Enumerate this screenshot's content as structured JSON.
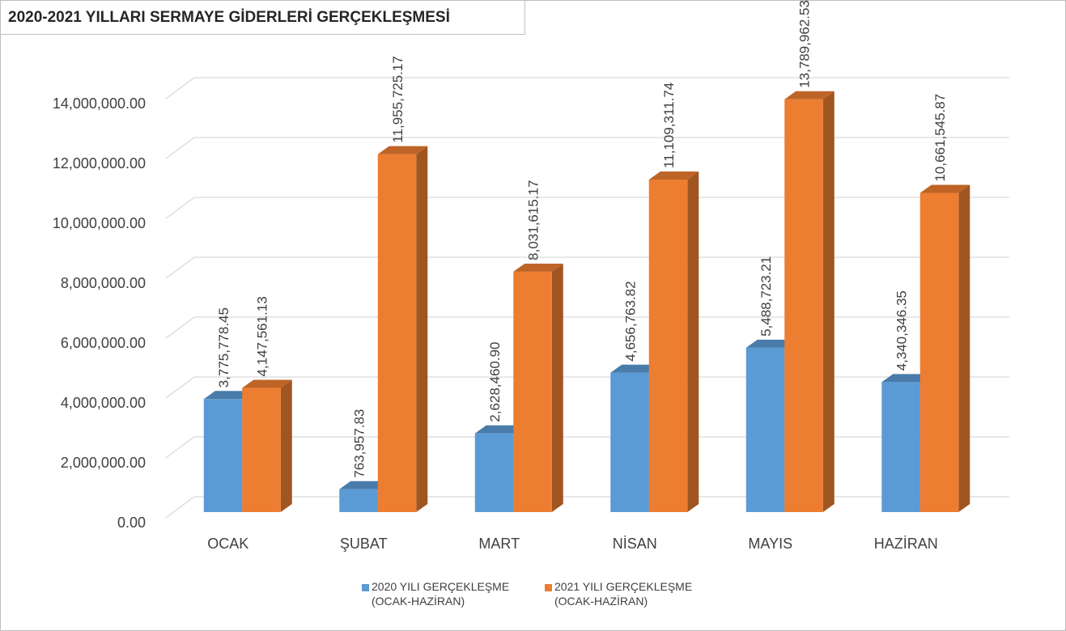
{
  "chart_data": {
    "type": "bar3d",
    "title": "2020-2021 YILLARI SERMAYE GİDERLERİ GERÇEKLEŞMESİ",
    "categories": [
      "OCAK",
      "ŞUBAT",
      "MART",
      "NİSAN",
      "MAYIS",
      "HAZİRAN"
    ],
    "series": [
      {
        "name": "2020 YILI GERÇEKLEŞME (OCAK-HAZİRAN)",
        "color": "#5b9bd5",
        "values": [
          3775778.45,
          763957.83,
          2628460.9,
          4656763.82,
          5488723.21,
          4340346.35
        ],
        "value_labels": [
          "3,775,778.45",
          "763,957.83",
          "2,628,460.90",
          "4,656,763.82",
          "5,488,723.21",
          "4,340,346.35"
        ]
      },
      {
        "name": "2021 YILI GERÇEKLEŞME (OCAK-HAZİRAN)",
        "color": "#ed7d31",
        "values": [
          4147561.13,
          11955725.17,
          8031615.17,
          11109311.74,
          13789962.53,
          10661545.87
        ],
        "value_labels": [
          "4,147,561.13",
          "11,955,725.17",
          "8,031,615.17",
          "11,109,311.74",
          "13,789,962.53",
          "10,661,545.87"
        ]
      }
    ],
    "ylim": [
      0,
      14000000
    ],
    "yticks": [
      {
        "value": 0,
        "label": "0.00"
      },
      {
        "value": 2000000,
        "label": "2,000,000.00"
      },
      {
        "value": 4000000,
        "label": "4,000,000.00"
      },
      {
        "value": 6000000,
        "label": "6,000,000.00"
      },
      {
        "value": 8000000,
        "label": "8,000,000.00"
      },
      {
        "value": 10000000,
        "label": "10,000,000.00"
      },
      {
        "value": 12000000,
        "label": "12,000,000.00"
      },
      {
        "value": 14000000,
        "label": "14,000,000.00"
      }
    ],
    "grid": true,
    "legend": "bottom"
  }
}
